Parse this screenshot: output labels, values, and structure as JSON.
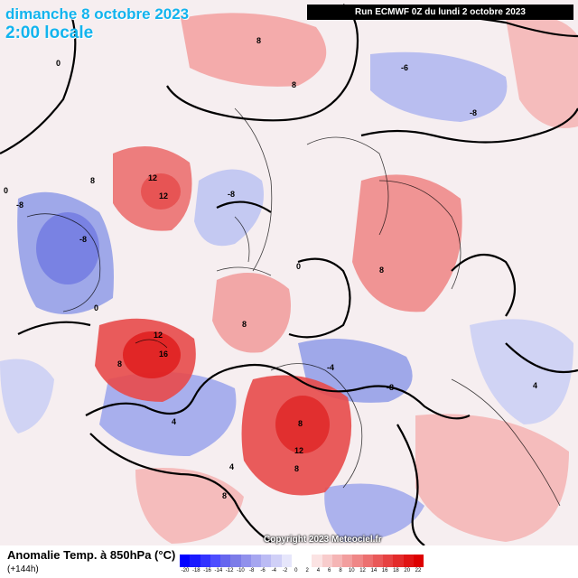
{
  "header": {
    "date_title": "dimanche 8 octobre 2023",
    "time_title": "2:00 locale",
    "run_info": "Run ECMWF 0Z du lundi 2 octobre 2023"
  },
  "map": {
    "copyright": "Copyright 2023 Meteociel.fr",
    "colors": {
      "warm": "#f08a8a",
      "warm_strong": "#e84040",
      "cold": "#8f9be8",
      "cold_strong": "#6a72e0",
      "background": "#f6eef0"
    },
    "contour_labels": {
      "l1": "8",
      "l2": "0",
      "l3": "8",
      "l4": "8",
      "l5": "12",
      "l6": "12",
      "l7": "-8",
      "l8": "-8",
      "l9": "-8",
      "l10": "0",
      "l11": "8",
      "l12": "12",
      "l13": "16",
      "l14": "8",
      "l15": "-4",
      "l16": "-8",
      "l17": "8",
      "l18": "8",
      "l19": "12",
      "l20": "8",
      "l21": "4",
      "l22": "4",
      "l23": "8",
      "l24": "0",
      "l25": "-8",
      "l26": "-6",
      "l27": "0",
      "l28": "4"
    }
  },
  "legend": {
    "title": "Anomalie Temp. à 850hPa (°C)",
    "subtitle": "(+144h)",
    "scale_colors": [
      "#0000ff",
      "#1a1aff",
      "#3333ff",
      "#4d4dff",
      "#6666ee",
      "#7c7ce8",
      "#9191ec",
      "#a6a6f0",
      "#bbbbf4",
      "#d0d0f7",
      "#e6e6fb",
      "#ffffff",
      "#ffffff",
      "#fbe3e3",
      "#f8cccc",
      "#f5b5b5",
      "#f29e9e",
      "#ef8787",
      "#ec7070",
      "#e95959",
      "#e64242",
      "#e32b2b",
      "#e01414",
      "#dd0000"
    ],
    "scale_ticks": [
      "-20",
      "-18",
      "-16",
      "-14",
      "-12",
      "-10",
      "-8",
      "-6",
      "-4",
      "-2",
      "0",
      "2",
      "4",
      "6",
      "8",
      "10",
      "12",
      "14",
      "16",
      "18",
      "20",
      "22"
    ]
  }
}
